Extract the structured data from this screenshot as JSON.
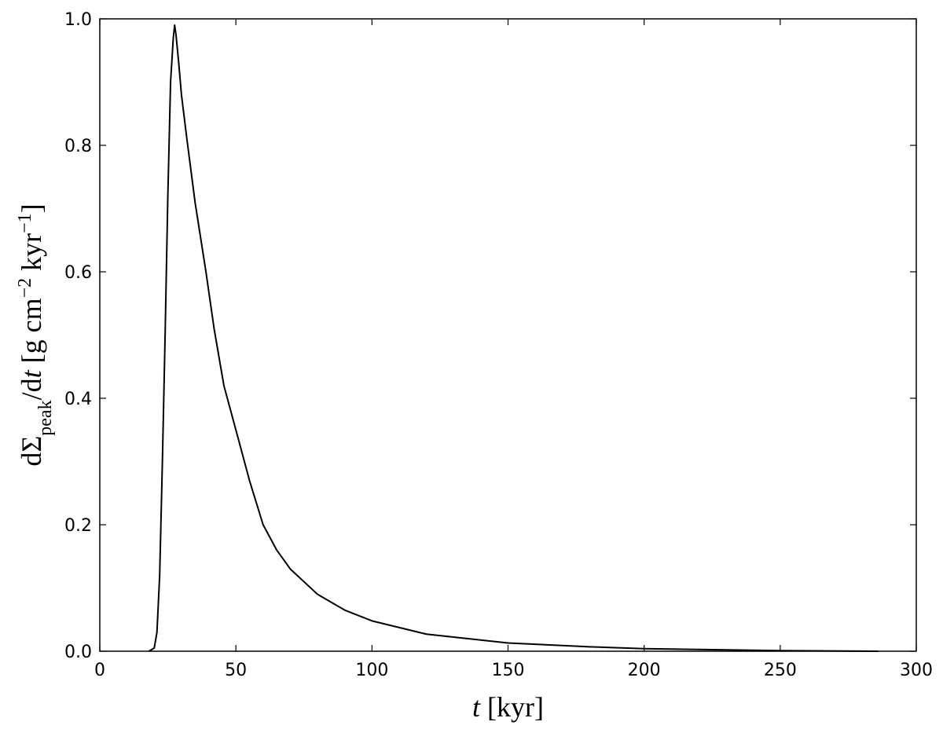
{
  "chart_data": {
    "type": "line",
    "xlabel": [
      {
        "text": "t",
        "style": "italic"
      },
      {
        "text": " [kyr]"
      }
    ],
    "ylabel": [
      {
        "text": "dΣ"
      },
      {
        "text": "peak",
        "shift": "sub"
      },
      {
        "text": "/d"
      },
      {
        "text": "t",
        "style": "italic"
      },
      {
        "text": " [g cm"
      },
      {
        "text": "−2",
        "shift": "sup"
      },
      {
        "text": " kyr"
      },
      {
        "text": "−1",
        "shift": "sup"
      },
      {
        "text": "]"
      }
    ],
    "x": [
      18,
      20,
      21,
      22,
      23,
      24,
      25,
      26,
      27,
      27.5,
      28,
      29,
      30,
      32,
      35,
      39,
      42,
      45.6,
      50,
      55,
      60,
      65,
      70,
      80,
      90,
      100,
      120,
      150,
      180,
      200,
      250,
      286
    ],
    "series": [
      {
        "color": "#000000",
        "values": [
          0,
          0.005,
          0.03,
          0.12,
          0.3,
          0.5,
          0.72,
          0.9,
          0.97,
          0.99,
          0.975,
          0.93,
          0.88,
          0.81,
          0.71,
          0.6,
          0.51,
          0.42,
          0.35,
          0.27,
          0.2,
          0.16,
          0.13,
          0.09,
          0.065,
          0.048,
          0.027,
          0.013,
          0.007,
          0.004,
          0.001,
          0
        ]
      }
    ],
    "xlim": [
      0,
      300
    ],
    "xticks": [
      0,
      50,
      100,
      150,
      200,
      250,
      300
    ],
    "ylim": [
      0,
      1
    ],
    "yticks": [
      {
        "value": 0,
        "label": "0.0"
      },
      0.2,
      0.4,
      0.6,
      0.8,
      {
        "value": 1,
        "label": "1.0"
      }
    ]
  }
}
